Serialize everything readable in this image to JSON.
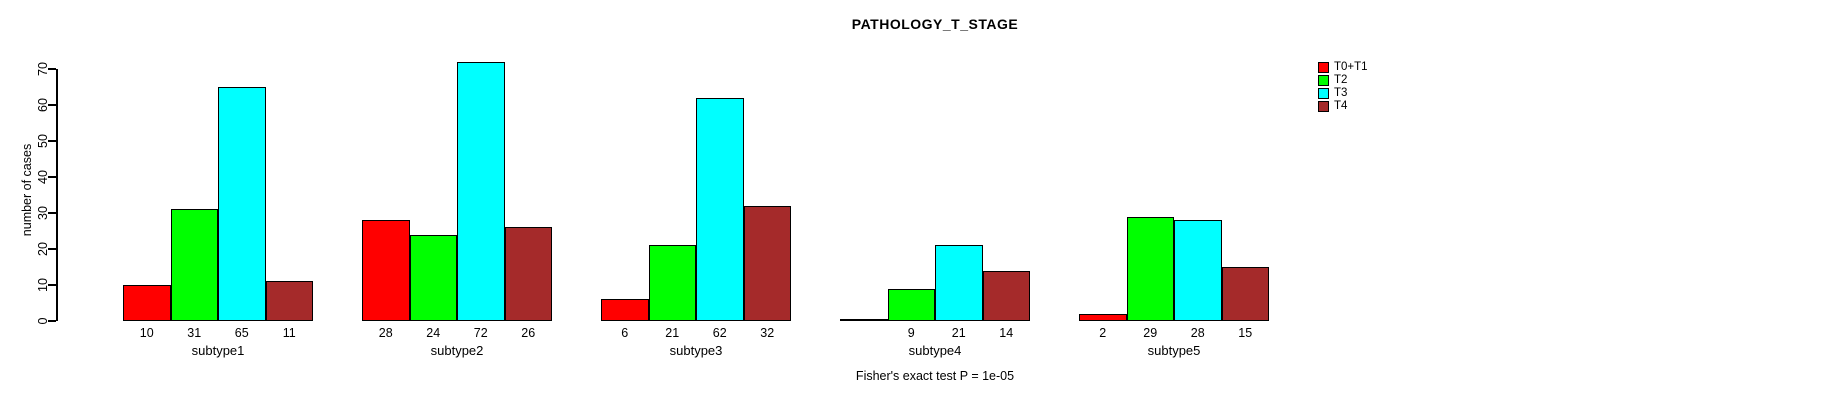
{
  "chart_data": {
    "type": "bar",
    "title": "PATHOLOGY_T_STAGE",
    "ylabel": "number of cases",
    "xlabel": "",
    "ylim": [
      0,
      70
    ],
    "yticks": [
      0,
      10,
      20,
      30,
      40,
      50,
      60,
      70
    ],
    "grid": false,
    "legend_position": "top-right",
    "categories": [
      "subtype1",
      "subtype2",
      "subtype3",
      "subtype4",
      "subtype5"
    ],
    "series": [
      {
        "name": "T0+T1",
        "color": "#ff0000",
        "values": [
          10,
          28,
          6,
          0,
          2
        ]
      },
      {
        "name": "T2",
        "color": "#00ff00",
        "values": [
          31,
          24,
          21,
          9,
          29
        ]
      },
      {
        "name": "T3",
        "color": "#00ffff",
        "values": [
          65,
          72,
          62,
          21,
          28
        ]
      },
      {
        "name": "T4",
        "color": "#a52a2a",
        "values": [
          11,
          26,
          32,
          14,
          15
        ]
      }
    ],
    "bar_value_labels": [
      [
        "10",
        "31",
        "65",
        "11"
      ],
      [
        "28",
        "24",
        "72",
        "26"
      ],
      [
        "6",
        "21",
        "62",
        "32"
      ],
      [
        "",
        "9",
        "21",
        "14"
      ],
      [
        "2",
        "29",
        "28",
        "15"
      ]
    ],
    "annotation": "Fisher's exact test P = 1e-05"
  }
}
